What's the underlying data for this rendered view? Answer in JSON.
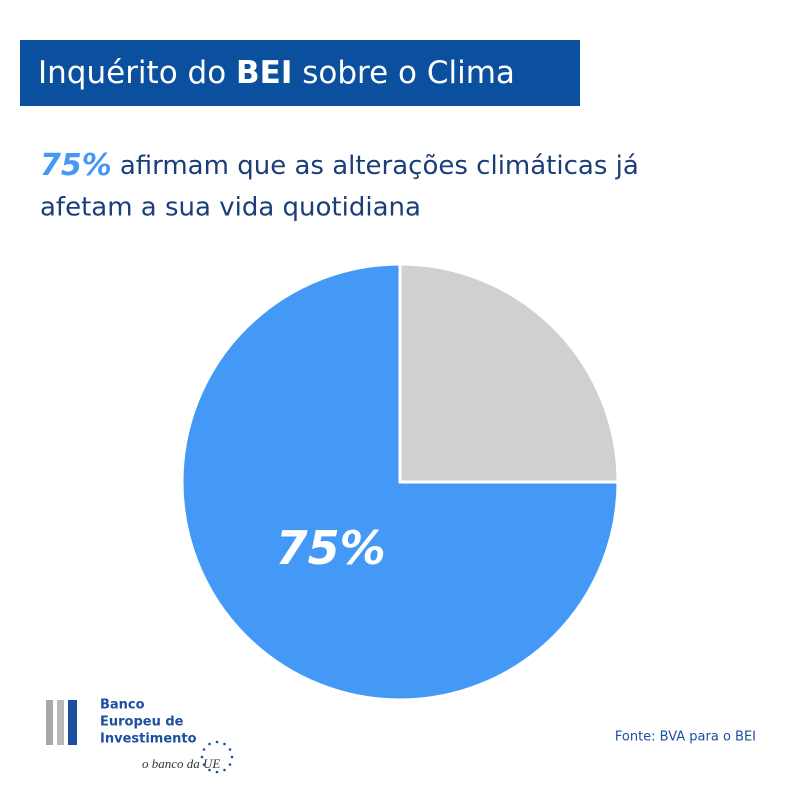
{
  "chart_data": {
    "type": "pie",
    "title_parts": [
      "Inquérito do ",
      "BEI",
      " sobre o Clima"
    ],
    "subtitle_highlight": "75%",
    "subtitle_lines": [
      "afirmam que as alterações climáticas já",
      "afetam a sua vida quotidiana"
    ],
    "values": [
      75,
      25
    ],
    "value_labels": [
      "75%",
      null
    ],
    "colors": [
      "#4499f7",
      "#d0d0d0"
    ],
    "source": "Fonte: BVA para o BEI",
    "logo_lines": [
      "Banco",
      "Europeu de",
      "Investimento"
    ],
    "logo_tagline": "o banco da UE"
  }
}
